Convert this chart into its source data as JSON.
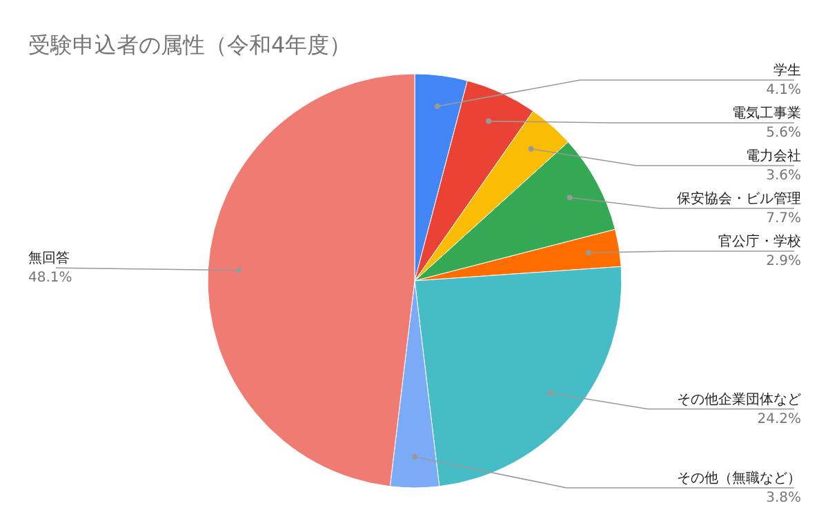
{
  "chart_data": {
    "type": "pie",
    "title": "受験申込者の属性（令和4年度）",
    "categories": [
      "学生",
      "電気工事業",
      "電力会社",
      "保安協会・ビル管理",
      "官公庁・学校",
      "その他企業団体など",
      "その他（無職など）",
      "無回答"
    ],
    "values": [
      4.1,
      5.6,
      3.6,
      7.7,
      2.9,
      24.2,
      3.8,
      48.1
    ],
    "colors": [
      "#4285f4",
      "#ea4335",
      "#fbbc04",
      "#34a853",
      "#ff6d01",
      "#46bdc6",
      "#7baaf7",
      "#f07b72"
    ],
    "value_labels": [
      "4.1%",
      "5.6%",
      "3.6%",
      "7.7%",
      "2.9%",
      "24.2%",
      "3.8%",
      "48.1%"
    ]
  }
}
